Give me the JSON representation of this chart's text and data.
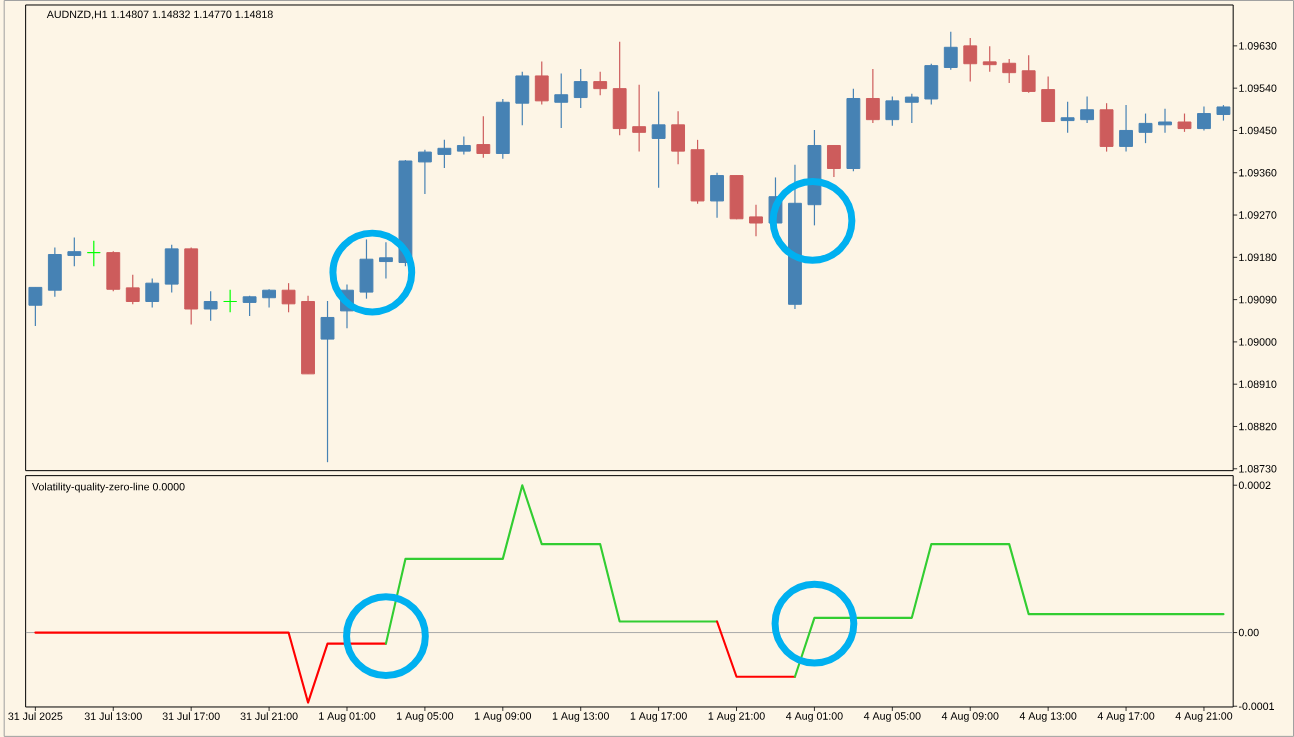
{
  "chart_data": [
    {
      "type": "candlestick",
      "title": "AUDNZD,H1  1.14807 1.14832 1.14770 1.14818",
      "categories": [
        null,
        null,
        null,
        null,
        null,
        null,
        null,
        null,
        null,
        null,
        null,
        null,
        null,
        null,
        null,
        null,
        null,
        null,
        null,
        null,
        null,
        null,
        null,
        null,
        null,
        null,
        null,
        null,
        null,
        null,
        null,
        null,
        null,
        null,
        null,
        null,
        null,
        null,
        null,
        null,
        null,
        null,
        null,
        null,
        null,
        null,
        null,
        null,
        null,
        null,
        null,
        null,
        null,
        null,
        null,
        null,
        null,
        null,
        null,
        null,
        null,
        null
      ],
      "ohlc": [
        [
          1.09078,
          1.09116,
          1.09034,
          1.09116
        ],
        [
          1.0911,
          1.09201,
          1.09096,
          1.09186
        ],
        [
          1.09184,
          1.09222,
          1.09161,
          1.09192
        ],
        [
          1.0919,
          1.09215,
          1.09161,
          1.0919
        ],
        [
          1.0919,
          1.09193,
          1.09108,
          1.09112
        ],
        [
          1.09115,
          1.09143,
          1.0908,
          1.09086
        ],
        [
          1.09086,
          1.09135,
          1.09073,
          1.09125
        ],
        [
          1.09123,
          1.09207,
          1.09105,
          1.09198
        ],
        [
          1.09198,
          1.09201,
          1.09037,
          1.0907
        ],
        [
          1.0907,
          1.09108,
          1.09045,
          1.09086
        ],
        [
          1.09086,
          1.09111,
          1.09063,
          1.09086
        ],
        [
          1.09084,
          1.09098,
          1.09055,
          1.09096
        ],
        [
          1.09094,
          1.09112,
          1.09073,
          1.0911
        ],
        [
          1.0911,
          1.09125,
          1.09063,
          1.09081
        ],
        [
          1.09086,
          1.09098,
          1.08932,
          1.08932
        ],
        [
          1.09006,
          1.09087,
          1.08744,
          1.09052
        ],
        [
          1.09066,
          1.09122,
          1.09029,
          1.0911
        ],
        [
          1.09106,
          1.09218,
          1.09092,
          1.09176
        ],
        [
          1.09171,
          1.09212,
          1.09135,
          1.09179
        ],
        [
          1.09169,
          1.09387,
          1.09161,
          1.09385
        ],
        [
          1.09383,
          1.09409,
          1.09315,
          1.09404
        ],
        [
          1.09399,
          1.0943,
          1.0937,
          1.09412
        ],
        [
          1.09406,
          1.09437,
          1.09399,
          1.09418
        ],
        [
          1.0942,
          1.0948,
          1.09392,
          1.09401
        ],
        [
          1.09401,
          1.09517,
          1.0939,
          1.0951
        ],
        [
          1.09508,
          1.09575,
          1.09461,
          1.09566
        ],
        [
          1.09566,
          1.09597,
          1.09505,
          1.09513
        ],
        [
          1.0951,
          1.09571,
          1.09455,
          1.09526
        ],
        [
          1.0952,
          1.09581,
          1.09498,
          1.09554
        ],
        [
          1.09554,
          1.09575,
          1.09525,
          1.09539
        ],
        [
          1.09539,
          1.09639,
          1.0944,
          1.09454
        ],
        [
          1.09458,
          1.09547,
          1.09405,
          1.09446
        ],
        [
          1.09433,
          1.09533,
          1.09328,
          1.09462
        ],
        [
          1.09462,
          1.09491,
          1.09378,
          1.09406
        ],
        [
          1.09409,
          1.0943,
          1.09294,
          1.093
        ],
        [
          1.093,
          1.0936,
          1.09264,
          1.09354
        ],
        [
          1.09354,
          1.09354,
          1.09261,
          1.09262
        ],
        [
          1.09266,
          1.09292,
          1.09225,
          1.09253
        ],
        [
          1.09253,
          1.0935,
          1.09253,
          1.09309
        ],
        [
          1.0908,
          1.09377,
          1.0907,
          1.09295
        ],
        [
          1.09292,
          1.09451,
          1.09248,
          1.09418
        ],
        [
          1.09418,
          1.09418,
          1.09351,
          1.09369
        ],
        [
          1.09369,
          1.09539,
          1.09363,
          1.09518
        ],
        [
          1.09518,
          1.09581,
          1.09466,
          1.09473
        ],
        [
          1.09473,
          1.09522,
          1.0946,
          1.09513
        ],
        [
          1.0951,
          1.09528,
          1.09466,
          1.09521
        ],
        [
          1.09517,
          1.09592,
          1.09505,
          1.09588
        ],
        [
          1.09584,
          1.0966,
          1.09579,
          1.09627
        ],
        [
          1.0963,
          1.09647,
          1.09554,
          1.09592
        ],
        [
          1.09596,
          1.09629,
          1.09575,
          1.0959
        ],
        [
          1.09593,
          1.09602,
          1.09551,
          1.09573
        ],
        [
          1.09577,
          1.0961,
          1.0953,
          1.09533
        ],
        [
          1.09537,
          1.09565,
          1.09469,
          1.09469
        ],
        [
          1.09471,
          1.09511,
          1.09445,
          1.09477
        ],
        [
          1.09473,
          1.09522,
          1.09466,
          1.09494
        ],
        [
          1.09494,
          1.09508,
          1.09405,
          1.09416
        ],
        [
          1.09416,
          1.09504,
          1.09405,
          1.0945
        ],
        [
          1.09446,
          1.09486,
          1.09423,
          1.09465
        ],
        [
          1.09462,
          1.09496,
          1.09445,
          1.09468
        ],
        [
          1.09468,
          1.09486,
          1.09447,
          1.09454
        ],
        [
          1.09454,
          1.09501,
          1.0945,
          1.09486
        ],
        [
          1.09484,
          1.09504,
          1.09471,
          1.095
        ]
      ],
      "colors": [
        "#4682b4",
        "#4682b4",
        "#4682b4",
        "#00ff00",
        "#cd5c5c",
        "#cd5c5c",
        "#4682b4",
        "#4682b4",
        "#cd5c5c",
        "#4682b4",
        "#00ff00",
        "#4682b4",
        "#4682b4",
        "#cd5c5c",
        "#cd5c5c",
        "#4682b4",
        "#4682b4",
        "#4682b4",
        "#4682b4",
        "#4682b4",
        "#4682b4",
        "#4682b4",
        "#4682b4",
        "#cd5c5c",
        "#4682b4",
        "#4682b4",
        "#cd5c5c",
        "#4682b4",
        "#4682b4",
        "#cd5c5c",
        "#cd5c5c",
        "#cd5c5c",
        "#4682b4",
        "#cd5c5c",
        "#cd5c5c",
        "#4682b4",
        "#cd5c5c",
        "#cd5c5c",
        "#4682b4",
        "#4682b4",
        "#4682b4",
        "#cd5c5c",
        "#4682b4",
        "#cd5c5c",
        "#4682b4",
        "#4682b4",
        "#4682b4",
        "#4682b4",
        "#cd5c5c",
        "#cd5c5c",
        "#cd5c5c",
        "#cd5c5c",
        "#cd5c5c",
        "#4682b4",
        "#4682b4",
        "#cd5c5c",
        "#4682b4",
        "#4682b4",
        "#4682b4",
        "#cd5c5c",
        "#4682b4",
        "#4682b4"
      ],
      "ylim": [
        1.08726,
        1.09717
      ],
      "yticks": [
        {
          "value": 1.0963,
          "label": "1.09630"
        },
        {
          "value": 1.0954,
          "label": "1.09540"
        },
        {
          "value": 1.0945,
          "label": "1.09450"
        },
        {
          "value": 1.0936,
          "label": "1.09360"
        },
        {
          "value": 1.0927,
          "label": "1.09270"
        },
        {
          "value": 1.0918,
          "label": "1.09180"
        },
        {
          "value": 1.0909,
          "label": "1.09090"
        },
        {
          "value": 1.09,
          "label": "1.09000"
        },
        {
          "value": 1.0891,
          "label": "1.08910"
        },
        {
          "value": 1.0882,
          "label": "1.08820"
        },
        {
          "value": 1.0873,
          "label": "1.08730"
        }
      ]
    },
    {
      "type": "line",
      "title": "Volatility-quality-zero-line 0.0000",
      "categories": [
        "31 Jul 2025",
        null,
        null,
        null,
        "31 Jul 13:00",
        null,
        null,
        null,
        "31 Jul 17:00",
        null,
        null,
        null,
        "31 Jul 21:00",
        null,
        null,
        null,
        "1 Aug 01:00",
        null,
        null,
        null,
        "1 Aug 05:00",
        null,
        null,
        null,
        "1 Aug 09:00",
        null,
        null,
        null,
        "1 Aug 13:00",
        null,
        null,
        null,
        "1 Aug 17:00",
        null,
        null,
        null,
        "1 Aug 21:00",
        null,
        null,
        null,
        "4 Aug 01:00",
        null,
        null,
        null,
        "4 Aug 05:00",
        null,
        null,
        null,
        "4 Aug 09:00",
        null,
        null,
        null,
        "4 Aug 13:00",
        null,
        null,
        null,
        "4 Aug 17:00",
        null,
        null,
        null,
        "4 Aug 21:00",
        null
      ],
      "series": [
        {
          "color": "#ff0000",
          "values": [
            0,
            0,
            0,
            0,
            0,
            0,
            0,
            0,
            0,
            0,
            0,
            0,
            0,
            0,
            -9.5e-05,
            -1.5e-05,
            -1.5e-05,
            -1.5e-05,
            -1.5e-05,
            null,
            null,
            null,
            null,
            null,
            null,
            null,
            null,
            null,
            null,
            null,
            null,
            null,
            null,
            null,
            null,
            null,
            null,
            null,
            null,
            null,
            null,
            null,
            null,
            null,
            null,
            null,
            null,
            null,
            null,
            null,
            null,
            null,
            null,
            null,
            null,
            null,
            null,
            null,
            null,
            null,
            null,
            null
          ]
        },
        {
          "color": "#32cd32",
          "values": [
            null,
            null,
            null,
            null,
            null,
            null,
            null,
            null,
            null,
            null,
            null,
            null,
            null,
            null,
            null,
            null,
            null,
            null,
            -1.5e-05,
            0.0001,
            0.0001,
            0.0001,
            0.0001,
            0.0001,
            0.0001,
            0.0002,
            0.00012,
            0.00012,
            0.00012,
            0.00012,
            1.5e-05,
            1.5e-05,
            1.5e-05,
            1.5e-05,
            1.5e-05,
            1.5e-05,
            null,
            null,
            null,
            null,
            null,
            null,
            null,
            null,
            null,
            null,
            null,
            null,
            null,
            null,
            null,
            null,
            null,
            null,
            null,
            null,
            null,
            null,
            null,
            null,
            null,
            null
          ]
        },
        {
          "color": "#ff0000",
          "values": [
            null,
            null,
            null,
            null,
            null,
            null,
            null,
            null,
            null,
            null,
            null,
            null,
            null,
            null,
            null,
            null,
            null,
            null,
            null,
            null,
            null,
            null,
            null,
            null,
            null,
            null,
            null,
            null,
            null,
            null,
            null,
            null,
            null,
            null,
            null,
            1.5e-05,
            -6e-05,
            -6e-05,
            -6e-05,
            -6e-05,
            null,
            null,
            null,
            null,
            null,
            null,
            null,
            null,
            null,
            null,
            null,
            null,
            null,
            null,
            null,
            null,
            null,
            null,
            null,
            null,
            null,
            null
          ]
        },
        {
          "color": "#32cd32",
          "values": [
            null,
            null,
            null,
            null,
            null,
            null,
            null,
            null,
            null,
            null,
            null,
            null,
            null,
            null,
            null,
            null,
            null,
            null,
            null,
            null,
            null,
            null,
            null,
            null,
            null,
            null,
            null,
            null,
            null,
            null,
            null,
            null,
            null,
            null,
            null,
            null,
            null,
            null,
            null,
            -6e-05,
            2e-05,
            2e-05,
            2e-05,
            2e-05,
            2e-05,
            2e-05,
            0.00012,
            0.00012,
            0.00012,
            0.00012,
            0.00012,
            2.5e-05,
            2.5e-05,
            2.5e-05,
            2.5e-05,
            2.5e-05,
            2.5e-05,
            2.5e-05,
            2.5e-05,
            2.5e-05,
            2.5e-05,
            2.5e-05
          ]
        }
      ],
      "ylim": [
        -0.000101,
        0.000213
      ],
      "yticks": [
        0.0002,
        {
          "value": 0,
          "label": "0.00"
        },
        -0.0001
      ],
      "ref_lines": [
        {
          "axis": "y",
          "value": 0,
          "color": "#a9a9a9"
        }
      ],
      "line_style": "solid"
    }
  ]
}
